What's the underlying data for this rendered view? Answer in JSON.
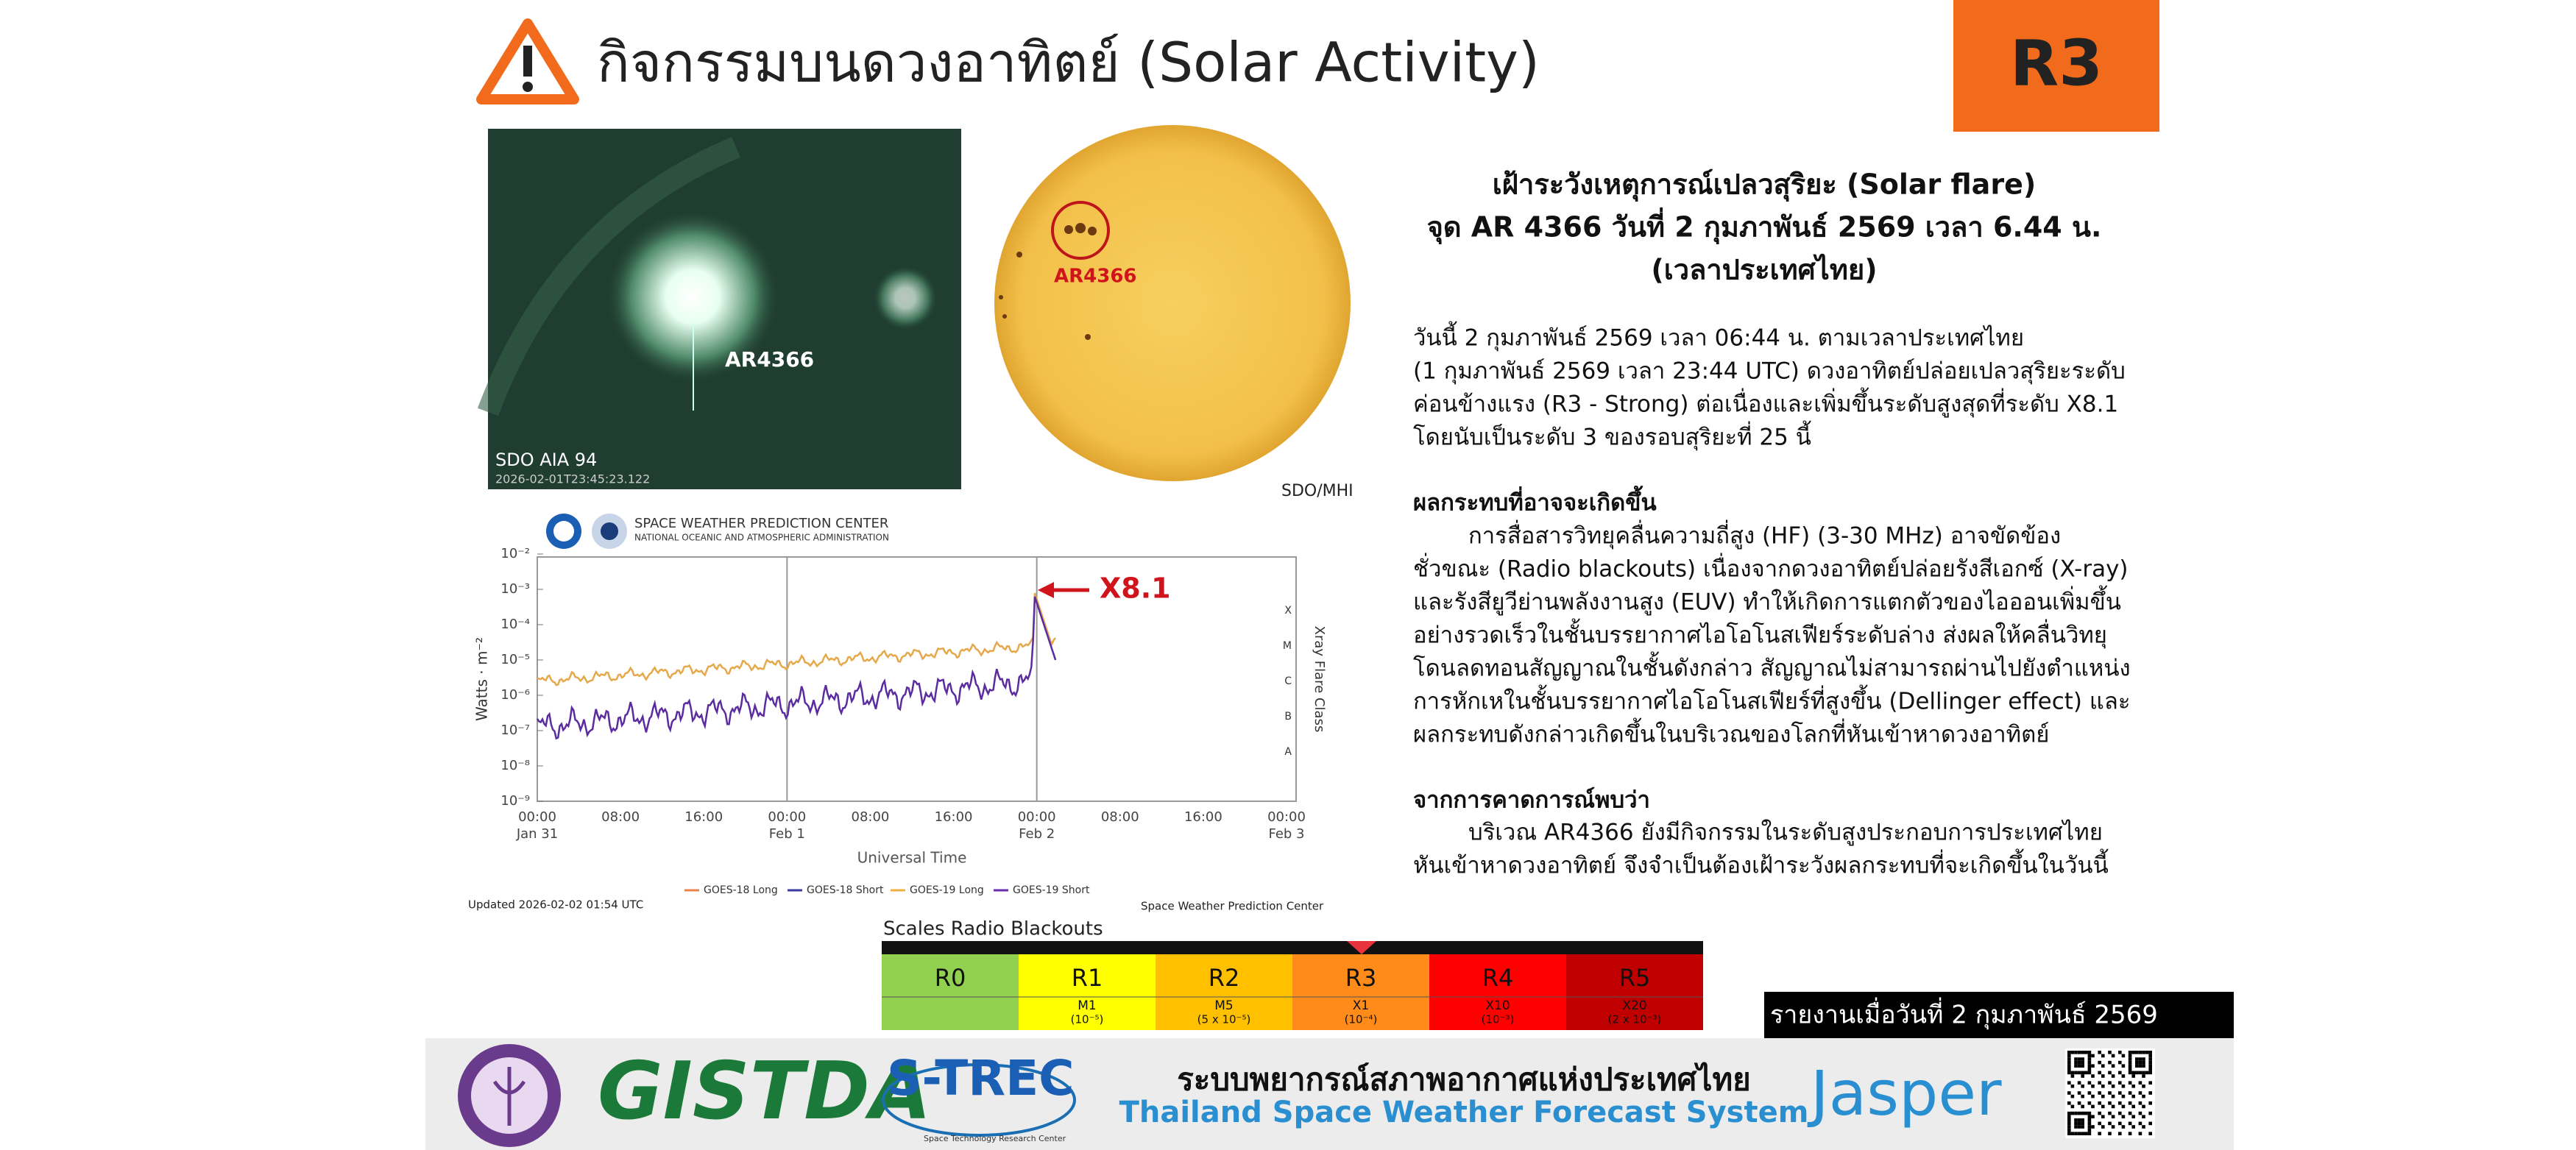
{
  "header": {
    "title": "กิจกรรมบนดวงอาทิตย์ (Solar Activity)",
    "level": "R3"
  },
  "images": {
    "euv": {
      "label": "AR4366",
      "caption": "SDO AIA 94",
      "timestamp": "2026-02-01T23:45:23.122"
    },
    "magnetogram": {
      "label": "AR4366",
      "caption": "SDO/MHI"
    }
  },
  "article": {
    "heading": [
      "เฝ้าระวังเหตุการณ์เปลวสุริยะ (Solar flare)",
      "จุด AR 4366 วันที่ 2 กุมภาพันธ์ 2569 เวลา 6.44 น.",
      "(เวลาประเทศไทย)"
    ],
    "intro": [
      "วันนี้  2 กุมภาพันธ์ 2569 เวลา 06:44 น. ตามเวลาประเทศไทย",
      "(1 กุมภาพันธ์ 2569 เวลา 23:44 UTC) ดวงอาทิตย์ปล่อยเปลวสุริยะระดับ",
      "ค่อนข้างแรง (R3 - Strong) ต่อเนื่องและเพิ่มขึ้นระดับสูงสุดที่ระดับ X8.1",
      "โดยนับเป็นระดับ 3 ของรอบสุริยะที่ 25 นี้"
    ],
    "impact": {
      "title": "ผลกระทบที่อาจจะเกิดขึ้น",
      "lines": [
        "การสื่อสารวิทยุคลื่นความถี่สูง (HF) (3-30 MHz) อาจขัดข้อง",
        "ชั่วขณะ (Radio blackouts) เนื่องจากดวงอาทิตย์ปล่อยรังสีเอกซ์ (X-ray)",
        "และรังสียูวีย่านพลังงานสูง (EUV) ทำให้เกิดการแตกตัวของไอออนเพิ่มขึ้น",
        "อย่างรวดเร็วในชั้นบรรยากาศไอโอโนสเฟียร์ระดับล่าง ส่งผลให้คลื่นวิทยุ",
        "โดนลดทอนสัญญาณในชั้นดังกล่าว สัญญาณไม่สามารถผ่านไปยังตำแหน่ง",
        "การหักเหในชั้นบรรยากาศไอโอโนสเฟียร์ที่สูงขึ้น (Dellinger effect) และ",
        "ผลกระทบดังกล่าวเกิดขึ้นในบริเวณของโลกที่หันเข้าหาดวงอาทิตย์"
      ]
    },
    "forecast": {
      "title": "จากการคาดการณ์พบว่า",
      "lines": [
        "บริเวณ AR4366 ยังมีกิจกรรมในระดับสูงประกอบการประเทศไทย",
        "หันเข้าหาดวงอาทิตย์ จึงจำเป็นต้องเฝ้าระวังผลกระทบที่จะเกิดขึ้นในวันนี้"
      ]
    }
  },
  "plot": {
    "org": "SPACE WEATHER PREDICTION CENTER",
    "org_sub": "NATIONAL OCEANIC AND ATMOSPHERIC ADMINISTRATION",
    "y_label": "Watts · m⁻²",
    "y_ticks": [
      "10⁻²",
      "10⁻³",
      "10⁻⁴",
      "10⁻⁵",
      "10⁻⁶",
      "10⁻⁷",
      "10⁻⁸",
      "10⁻⁹"
    ],
    "x_ticks": [
      {
        "time": "00:00",
        "date": "Jan 31"
      },
      {
        "time": "08:00"
      },
      {
        "time": "16:00"
      },
      {
        "time": "00:00",
        "date": "Feb 1"
      },
      {
        "time": "08:00"
      },
      {
        "time": "16:00"
      },
      {
        "time": "00:00",
        "date": "Feb 2"
      },
      {
        "time": "08:00"
      },
      {
        "time": "16:00"
      },
      {
        "time": "00:00",
        "date": "Feb 3"
      }
    ],
    "x_label": "Universal Time",
    "class_label": "Xray Flare Class",
    "classes": [
      "X",
      "M",
      "C",
      "B",
      "A"
    ],
    "annotation": "X8.1",
    "legend": [
      "GOES-18 Long",
      "GOES-18 Short",
      "GOES-19 Long",
      "GOES-19 Short"
    ],
    "updated": "Updated 2026-02-02 01:54 UTC",
    "credit": "Space Weather Prediction Center"
  },
  "scale": {
    "title": "Scales Radio Blackouts",
    "levels": [
      {
        "name": "R0"
      },
      {
        "name": "R1",
        "class": "M1",
        "flux": "(10⁻⁵)"
      },
      {
        "name": "R2",
        "class": "M5",
        "flux": "(5 x 10⁻⁵)"
      },
      {
        "name": "R3",
        "class": "X1",
        "flux": "(10⁻⁴)"
      },
      {
        "name": "R4",
        "class": "X10",
        "flux": "(10⁻³)"
      },
      {
        "name": "R5",
        "class": "X20",
        "flux": "(2 x 10⁻³)"
      }
    ]
  },
  "report_date": "รายงานเมื่อวันที่ 2 กุมภาพันธ์ 2569",
  "footer": {
    "title": "ระบบพยากรณ์สภาพอากาศแห่งประเทศไทย",
    "subtitle": "Thailand Space Weather Forecast System",
    "logos": [
      "GISTDA",
      "S-TREC",
      "Space Technology Research Center",
      "Jasper"
    ]
  }
}
